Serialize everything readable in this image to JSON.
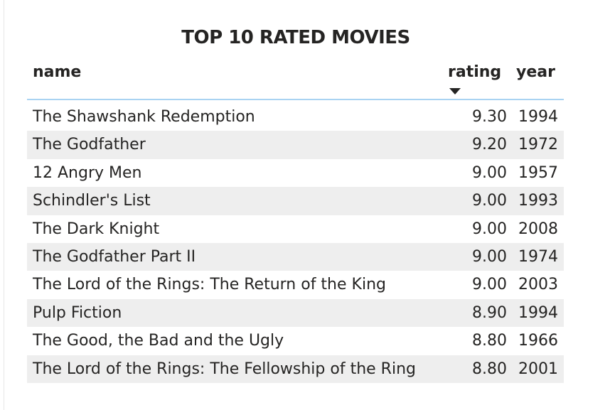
{
  "chart_data": {
    "type": "table",
    "title": "TOP 10 RATED MOVIES",
    "columns": [
      "name",
      "rating",
      "year"
    ],
    "sort": {
      "column": "rating",
      "direction": "descending"
    },
    "rows": [
      {
        "name": "The Shawshank Redemption",
        "rating": "9.30",
        "year": "1994"
      },
      {
        "name": "The Godfather",
        "rating": "9.20",
        "year": "1972"
      },
      {
        "name": "12 Angry Men",
        "rating": "9.00",
        "year": "1957"
      },
      {
        "name": "Schindler's List",
        "rating": "9.00",
        "year": "1993"
      },
      {
        "name": "The Dark Knight",
        "rating": "9.00",
        "year": "2008"
      },
      {
        "name": "The Godfather Part II",
        "rating": "9.00",
        "year": "1974"
      },
      {
        "name": "The Lord of the Rings: The Return of the King",
        "rating": "9.00",
        "year": "2003"
      },
      {
        "name": "Pulp Fiction",
        "rating": "8.90",
        "year": "1994"
      },
      {
        "name": "The Good, the Bad and the Ugly",
        "rating": "8.80",
        "year": "1966"
      },
      {
        "name": "The Lord of the Rings: The Fellowship of the Ring",
        "rating": "8.80",
        "year": "2001"
      }
    ]
  },
  "icons": {
    "sort_indicator": "sort-descending-icon"
  },
  "colors": {
    "text": "#252423",
    "header_border": "#a9d3f2",
    "alt_row": "#eeeeee"
  }
}
